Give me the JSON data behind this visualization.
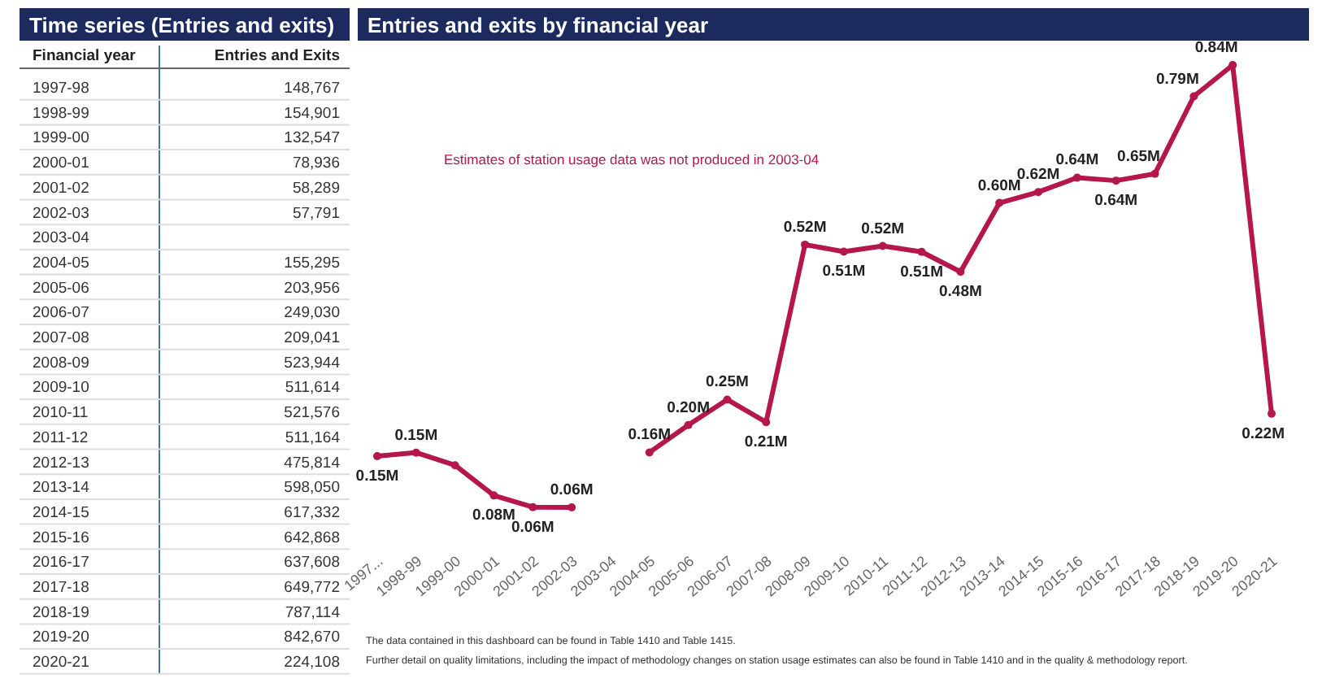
{
  "chart_data": [
    {
      "type": "other",
      "title": "Time series (Entries and exits)",
      "xlabel": "Financial year",
      "ylabel": "Entries and Exits",
      "categories": [
        "1997-98",
        "1998-99",
        "1999-00",
        "2000-01",
        "2001-02",
        "2002-03",
        "2003-04",
        "2004-05",
        "2005-06",
        "2006-07",
        "2007-08",
        "2008-09",
        "2009-10",
        "2010-11",
        "2011-12",
        "2012-13",
        "2013-14",
        "2014-15",
        "2015-16",
        "2016-17",
        "2017-18",
        "2018-19",
        "2019-20",
        "2020-21"
      ],
      "values": [
        148767,
        154901,
        132547,
        78936,
        58289,
        57791,
        null,
        155295,
        203956,
        249030,
        209041,
        523944,
        511614,
        521576,
        511164,
        475814,
        598050,
        617332,
        642868,
        637608,
        649772,
        787114,
        842670,
        224108
      ],
      "value_labels": [
        "148,767",
        "154,901",
        "132,547",
        "78,936",
        "58,289",
        "57,791",
        null,
        "155,295",
        "203,956",
        "249,030",
        "209,041",
        "523,944",
        "511,614",
        "521,576",
        "511,164",
        "475,814",
        "598,050",
        "617,332",
        "642,868",
        "637,608",
        "649,772",
        "787,114",
        "842,670",
        "224,108"
      ]
    },
    {
      "type": "line",
      "title": "Entries and exits by financial year",
      "color": "#b5164b",
      "categories": [
        "1997...",
        "1998-99",
        "1999-00",
        "2000-01",
        "2001-02",
        "2002-03",
        "2003-04",
        "2004-05",
        "2005-06",
        "2006-07",
        "2007-08",
        "2008-09",
        "2009-10",
        "2010-11",
        "2011-12",
        "2012-13",
        "2013-14",
        "2014-15",
        "2015-16",
        "2016-17",
        "2017-18",
        "2018-19",
        "2019-20",
        "2020-21"
      ],
      "values": [
        148767,
        154901,
        132547,
        78936,
        58289,
        57791,
        null,
        155295,
        203956,
        249030,
        209041,
        523944,
        511614,
        521576,
        511164,
        475814,
        598050,
        617332,
        642868,
        637608,
        649772,
        787114,
        842670,
        224108
      ],
      "value_labels": [
        "0.15M",
        "0.15M",
        null,
        "0.08M",
        "0.06M",
        "0.06M",
        null,
        "0.16M",
        "0.20M",
        "0.25M",
        "0.21M",
        "0.52M",
        "0.51M",
        "0.52M",
        "0.51M",
        "0.48M",
        "0.60M",
        "0.62M",
        "0.64M",
        "0.64M",
        "0.65M",
        "0.79M",
        "0.84M",
        "0.22M"
      ],
      "marker": "circle",
      "annotations": [
        {
          "text": "Estimates of station usage data was not produced in 2003-04"
        },
        "The data contained in this dashboard can be found in Table 1410 and Table 1415.",
        "Further detail on quality limitations, including the impact of methodology changes on station usage estimates can also be found in Table 1410 and in the quality & methodology report."
      ]
    }
  ]
}
